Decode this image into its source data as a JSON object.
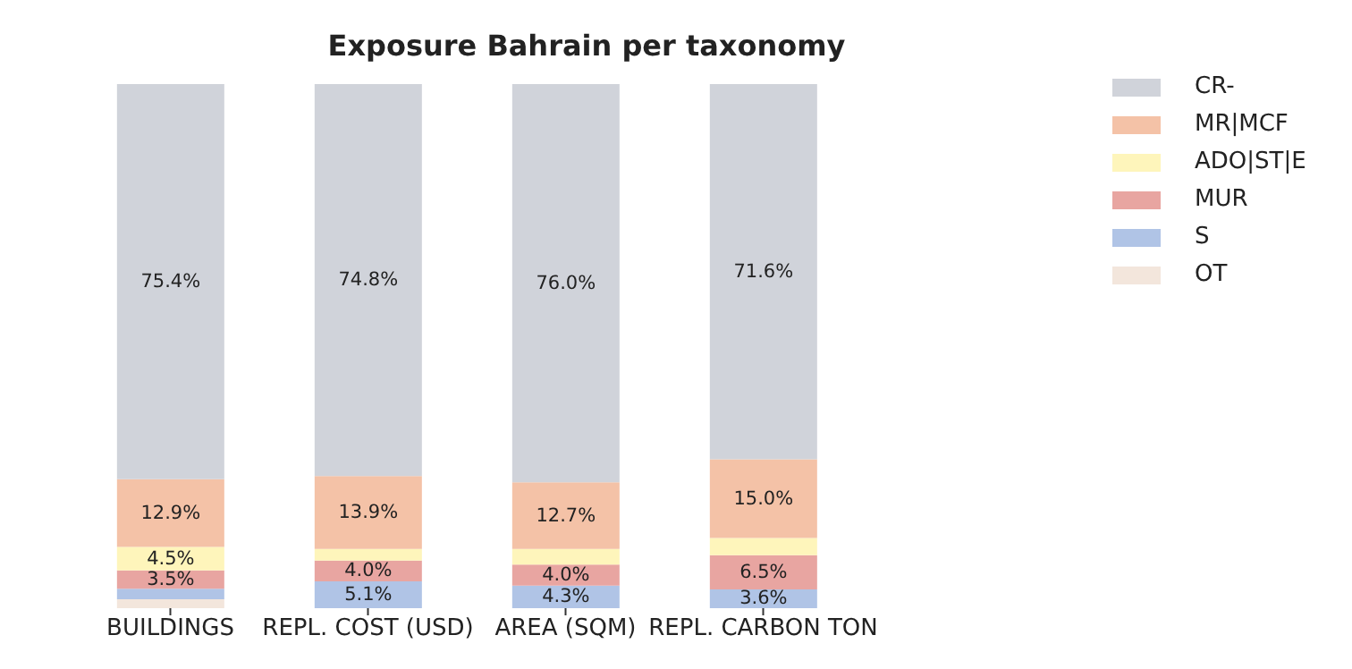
{
  "chart_data": {
    "type": "bar",
    "title": "Exposure Bahrain per taxonomy",
    "stacked": true,
    "legend": "top right",
    "grid": false,
    "categories": [
      "BUILDINGS",
      "REPL. COST (USD)",
      "AREA (SQM)",
      "REPL. CARBON TON"
    ],
    "series": [
      {
        "name": "OT",
        "color": "#f3e6dc",
        "values": [
          1.7,
          0,
          0,
          0
        ],
        "value_labels": [
          null,
          null,
          null,
          null
        ]
      },
      {
        "name": "S",
        "color": "#b0c4e6",
        "values": [
          2.0,
          5.1,
          4.3,
          3.6
        ],
        "value_labels": [
          null,
          "5.1%",
          "4.3%",
          "3.6%"
        ]
      },
      {
        "name": "MUR",
        "color": "#e8a5a1",
        "values": [
          3.5,
          4.0,
          4.0,
          6.5
        ],
        "value_labels": [
          "3.5%",
          "4.0%",
          "4.0%",
          "6.5%"
        ]
      },
      {
        "name": "ADO|ST|E",
        "color": "#fef5bb",
        "values": [
          4.5,
          2.2,
          3.0,
          3.3
        ],
        "value_labels": [
          "4.5%",
          null,
          null,
          null
        ]
      },
      {
        "name": "MR|MCF",
        "color": "#f4c2a7",
        "values": [
          12.9,
          13.9,
          12.7,
          15.0
        ],
        "value_labels": [
          "12.9%",
          "13.9%",
          "12.7%",
          "15.0%"
        ]
      },
      {
        "name": "CR-",
        "color": "#d0d3da",
        "values": [
          75.4,
          74.8,
          76.0,
          71.6
        ],
        "value_labels": [
          "75.4%",
          "74.8%",
          "76.0%",
          "71.6%"
        ]
      }
    ]
  }
}
